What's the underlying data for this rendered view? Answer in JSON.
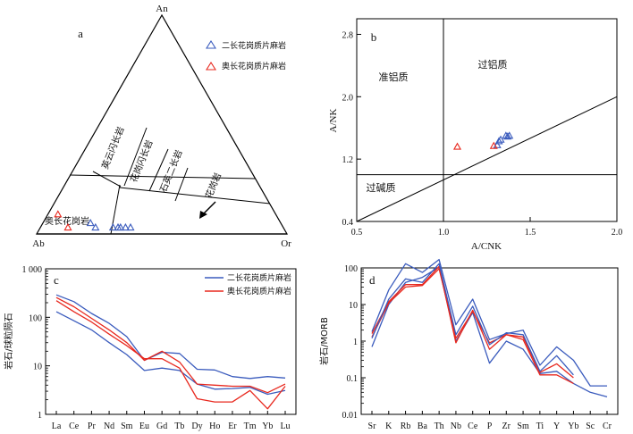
{
  "colors": {
    "blue": "#3a5bbd",
    "red": "#e8281e",
    "axis": "#000000"
  },
  "chart_data": [
    {
      "id": "a",
      "type": "ternary",
      "panel_label": "a",
      "apexes": {
        "top": "An",
        "bottom_left": "Ab",
        "bottom_right": "Or"
      },
      "legend": [
        {
          "name": "二长花岗质片麻岩",
          "marker": "triangle",
          "color": "#3a5bbd"
        },
        {
          "name": "奥长花岗质片麻岩",
          "marker": "triangle",
          "color": "#e8281e"
        }
      ],
      "field_labels": [
        "奥长花岗岩",
        "英云闪长岩",
        "花岗闪长岩",
        "石英二长岩",
        "花岗岩"
      ],
      "series": [
        {
          "name": "二长花岗质片麻岩",
          "points": [
            {
              "an": 5,
              "ab": 76,
              "or": 19
            },
            {
              "an": 3,
              "ab": 75,
              "or": 22
            },
            {
              "an": 3,
              "ab": 68,
              "or": 29
            },
            {
              "an": 3,
              "ab": 66,
              "or": 31
            },
            {
              "an": 3,
              "ab": 65,
              "or": 32
            },
            {
              "an": 3,
              "ab": 63,
              "or": 34
            },
            {
              "an": 3,
              "ab": 61,
              "or": 36
            }
          ]
        },
        {
          "name": "奥长花岗质片麻岩",
          "points": [
            {
              "an": 9,
              "ab": 87,
              "or": 4
            },
            {
              "an": 3,
              "ab": 86,
              "or": 11
            }
          ]
        }
      ]
    },
    {
      "id": "b",
      "type": "scatter",
      "panel_label": "b",
      "xlabel": "A/CNK",
      "ylabel": "A/NK",
      "xlim": [
        0.5,
        2.0
      ],
      "ylim": [
        0.4,
        3.0
      ],
      "xticks": [
        "0.5",
        "1.0",
        "1.5",
        "2.0"
      ],
      "yticks": [
        "0.4",
        "1.2",
        "2.0",
        "2.8"
      ],
      "field_labels": [
        "准铝质",
        "过铝质",
        "过碱质"
      ],
      "series": [
        {
          "name": "二长花岗质片麻岩",
          "points": [
            {
              "x": 1.31,
              "y": 1.38
            },
            {
              "x": 1.32,
              "y": 1.43
            },
            {
              "x": 1.33,
              "y": 1.45
            },
            {
              "x": 1.36,
              "y": 1.5
            },
            {
              "x": 1.37,
              "y": 1.49
            },
            {
              "x": 1.38,
              "y": 1.5
            }
          ]
        },
        {
          "name": "奥长花岗质片麻岩",
          "points": [
            {
              "x": 1.08,
              "y": 1.36
            },
            {
              "x": 1.29,
              "y": 1.37
            }
          ]
        }
      ]
    },
    {
      "id": "c",
      "type": "line",
      "panel_label": "c",
      "ylabel": "岩石/球粒陨石",
      "yscale": "log",
      "ylim": [
        1,
        1000
      ],
      "yticks": [
        "1",
        "10",
        "100",
        "1 000"
      ],
      "categories": [
        "La",
        "Ce",
        "Pr",
        "Nd",
        "Sm",
        "Eu",
        "Gd",
        "Tb",
        "Dy",
        "Ho",
        "Er",
        "Tm",
        "Yb",
        "Lu"
      ],
      "legend": [
        {
          "name": "二长花岗质片麻岩",
          "color": "#3a5bbd"
        },
        {
          "name": "奥长花岗质片麻岩",
          "color": "#e8281e"
        }
      ],
      "series": [
        {
          "name": "二长花岗质片麻岩",
          "values": [
            290,
            210,
            120,
            75,
            40,
            13,
            19,
            18,
            8.5,
            8.2,
            6,
            5.5,
            6,
            5.6
          ]
        },
        {
          "name": "二长花岗质片麻岩",
          "values": [
            130,
            85,
            55,
            30,
            17,
            8,
            9,
            8,
            4.2,
            3.3,
            3.4,
            3.6,
            2.6,
            3.1
          ]
        },
        {
          "name": "奥长花岗质片麻岩",
          "values": [
            255,
            165,
            95,
            55,
            30,
            13,
            20,
            12,
            4.2,
            4,
            3.8,
            3.8,
            2.8,
            4.2
          ]
        },
        {
          "name": "奥长花岗质片麻岩",
          "values": [
            220,
            130,
            80,
            45,
            26,
            14,
            14,
            9,
            2.1,
            1.8,
            1.8,
            3.1,
            1.3,
            3.8
          ]
        }
      ]
    },
    {
      "id": "d",
      "type": "line",
      "panel_label": "d",
      "ylabel": "岩石/MORB",
      "yscale": "log",
      "ylim": [
        0.01,
        100
      ],
      "yticks": [
        "0.01",
        "0.1",
        "1",
        "10",
        "100"
      ],
      "categories": [
        "Sr",
        "K",
        "Rb",
        "Ba",
        "Th",
        "Nb",
        "Ce",
        "P",
        "Zr",
        "Sm",
        "Ti",
        "Y",
        "Yb",
        "Sc",
        "Cr"
      ],
      "series": [
        {
          "name": "二长花岗质片麻岩",
          "values": [
            1.8,
            25,
            130,
            75,
            170,
            2.8,
            14,
            1.1,
            1.6,
            2,
            0.22,
            0.7,
            0.3,
            0.06,
            0.06
          ]
        },
        {
          "name": "二长花岗质片麻岩",
          "values": [
            0.7,
            10,
            40,
            55,
            105,
            1,
            6,
            0.25,
            1,
            0.6,
            0.13,
            0.15,
            0.07,
            0.04,
            0.03
          ]
        },
        {
          "name": "奥长花岗质片麻岩",
          "values": [
            1.6,
            12,
            35,
            35,
            110,
            0.9,
            7,
            0.6,
            1.5,
            1.3,
            0.14,
            0.24,
            0.1,
            null,
            null
          ]
        },
        {
          "name": "奥长花岗质片麻岩",
          "values": [
            1.3,
            11,
            30,
            33,
            95,
            1.2,
            6.5,
            0.9,
            1.5,
            1.1,
            0.12,
            0.12,
            0.07,
            null,
            null
          ]
        },
        {
          "name": "二长花岗质片麻岩",
          "values": [
            1.2,
            14,
            50,
            40,
            130,
            1.5,
            9,
            0.8,
            1.7,
            1.5,
            0.15,
            0.4,
            0.12,
            null,
            null
          ]
        }
      ]
    }
  ]
}
